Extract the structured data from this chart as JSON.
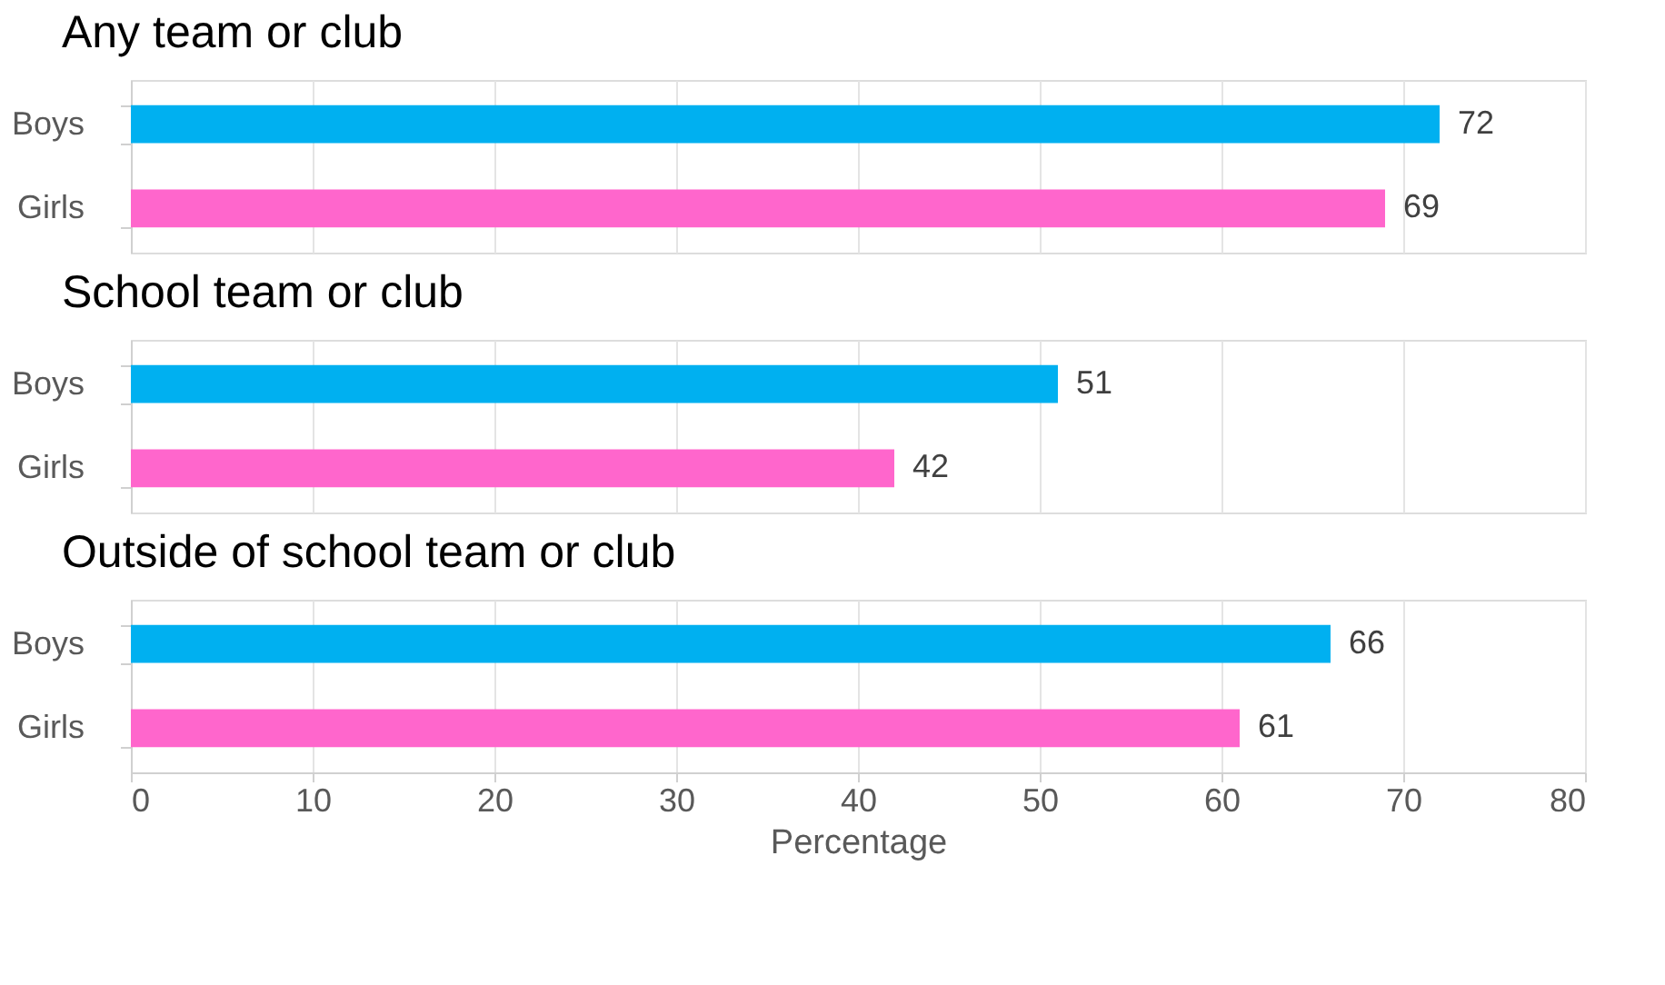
{
  "chart_data": [
    {
      "type": "bar",
      "orientation": "horizontal",
      "title": "Any team or club",
      "categories": [
        "Boys",
        "Girls"
      ],
      "values": [
        72,
        69
      ],
      "colors": [
        "#00b0f0",
        "#ff66cc"
      ],
      "xlim": [
        0,
        80
      ],
      "xticks": [
        0,
        10,
        20,
        30,
        40,
        50,
        60,
        70,
        80
      ],
      "grid": "x",
      "data_labels": true,
      "tick_labels": "y"
    },
    {
      "type": "bar",
      "orientation": "horizontal",
      "title": "School team or club",
      "categories": [
        "Boys",
        "Girls"
      ],
      "values": [
        51,
        42
      ],
      "colors": [
        "#00b0f0",
        "#ff66cc"
      ],
      "xlim": [
        0,
        80
      ],
      "xticks": [
        0,
        10,
        20,
        30,
        40,
        50,
        60,
        70,
        80
      ],
      "grid": "x",
      "data_labels": true,
      "tick_labels": "y"
    },
    {
      "type": "bar",
      "orientation": "horizontal",
      "title": "Outside of school team or club",
      "categories": [
        "Boys",
        "Girls"
      ],
      "values": [
        66,
        61
      ],
      "colors": [
        "#00b0f0",
        "#ff66cc"
      ],
      "xlim": [
        0,
        80
      ],
      "xticks": [
        0,
        10,
        20,
        30,
        40,
        50,
        60,
        70,
        80
      ],
      "grid": "x",
      "data_labels": true,
      "xlabel": "Percentage"
    }
  ]
}
